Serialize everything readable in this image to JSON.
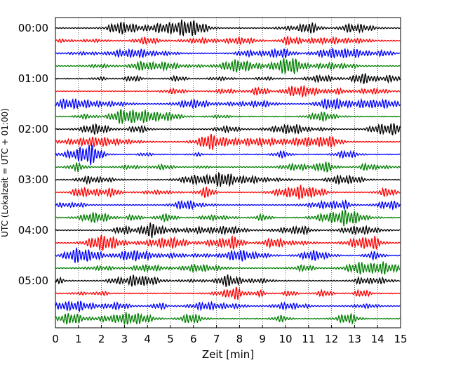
{
  "chart_data": {
    "type": "line",
    "xlabel": "Zeit  [min]",
    "ylabel": "UTC (Lokalzeit = UTC + 01:00)",
    "xlim": [
      0,
      15
    ],
    "x_ticks": [
      "0",
      "1",
      "2",
      "3",
      "4",
      "5",
      "6",
      "7",
      "8",
      "9",
      "10",
      "11",
      "12",
      "13",
      "14",
      "15"
    ],
    "y_tick_labels": [
      "00:00",
      "01:00",
      "02:00",
      "03:00",
      "04:00",
      "05:00"
    ],
    "grid": "vertical dotted at each minute",
    "trace_interval_min": 15,
    "trace_count": 24,
    "trace_colors": [
      "#000000",
      "#ff0000",
      "#0000ff",
      "#007f00"
    ]
  }
}
